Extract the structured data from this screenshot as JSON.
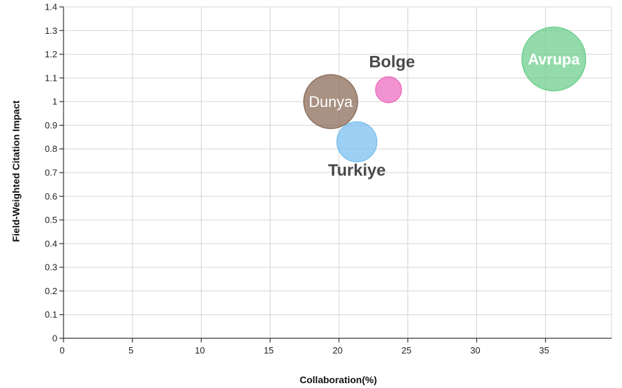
{
  "chart_data": {
    "type": "bubble",
    "xlabel": "Collaboration(%)",
    "ylabel": "Field-Weighted Citation Impact",
    "xlim": [
      0,
      40
    ],
    "ylim": [
      0,
      1.4
    ],
    "x_ticks": [
      "0",
      "5",
      "10",
      "15",
      "20",
      "25",
      "30",
      "35"
    ],
    "y_ticks": [
      "0",
      "0.1",
      "0.2",
      "0.3",
      "0.4",
      "0.5",
      "0.6",
      "0.7",
      "0.8",
      "0.9",
      "1",
      "1.1",
      "1.2",
      "1.3",
      "1.4"
    ],
    "grid": true,
    "points": [
      {
        "label": "Dunya",
        "x": 19.4,
        "y": 1.0,
        "size": 1.0,
        "color": "#8c6e5a",
        "label_position": "center",
        "label_color": "#ffffff",
        "label_bold": false
      },
      {
        "label": "Bolge",
        "x": 23.6,
        "y": 1.05,
        "size": 0.23,
        "color": "#ec6fc0",
        "label_position": "above",
        "label_color": "#4a4a4a",
        "label_bold": true
      },
      {
        "label": "Turkiye",
        "x": 21.3,
        "y": 0.83,
        "size": 0.55,
        "color": "#7cc0f0",
        "label_position": "below",
        "label_color": "#4a4a4a",
        "label_bold": true
      },
      {
        "label": "Avrupa",
        "x": 35.6,
        "y": 1.18,
        "size": 1.4,
        "color": "#6fcf8f",
        "label_position": "center",
        "label_color": "#ffffff",
        "label_bold": true
      }
    ]
  }
}
